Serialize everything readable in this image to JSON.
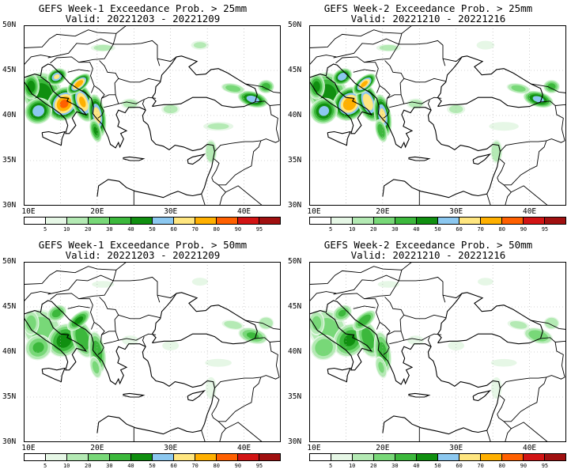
{
  "panels": [
    {
      "id": "p1",
      "title": "GEFS Week-1 Exceedance Prob. > 25mm",
      "valid": "Valid: 20221203 - 20221209",
      "threshold": 25,
      "intensity": 1.0
    },
    {
      "id": "p2",
      "title": "GEFS Week-2 Exceedance Prob. > 25mm",
      "valid": "Valid: 20221210 - 20221216",
      "threshold": 25,
      "intensity": 0.95
    },
    {
      "id": "p3",
      "title": "GEFS Week-1 Exceedance Prob. > 50mm",
      "valid": "Valid: 20221203 - 20221209",
      "threshold": 50,
      "intensity": 0.55
    },
    {
      "id": "p4",
      "title": "GEFS Week-2 Exceedance Prob. > 50mm",
      "valid": "Valid: 20221210 - 20221216",
      "threshold": 50,
      "intensity": 0.5
    }
  ],
  "lat_labels": [
    "50N",
    "45N",
    "40N",
    "35N",
    "30N"
  ],
  "lon_labels": [
    "10E",
    "20E",
    "30E",
    "40E"
  ],
  "map_extent": {
    "lon": [
      10,
      45
    ],
    "lat": [
      30,
      50
    ]
  },
  "colorbar": {
    "labels": [
      "5",
      "10",
      "20",
      "30",
      "40",
      "50",
      "60",
      "70",
      "80",
      "90",
      "95"
    ],
    "colors": [
      "#ffffff",
      "#e6f7e6",
      "#b4eab4",
      "#78d878",
      "#3cb83c",
      "#108f10",
      "#8cc8f0",
      "#ffe680",
      "#ffb000",
      "#ff6000",
      "#d21414",
      "#a01010"
    ]
  }
}
